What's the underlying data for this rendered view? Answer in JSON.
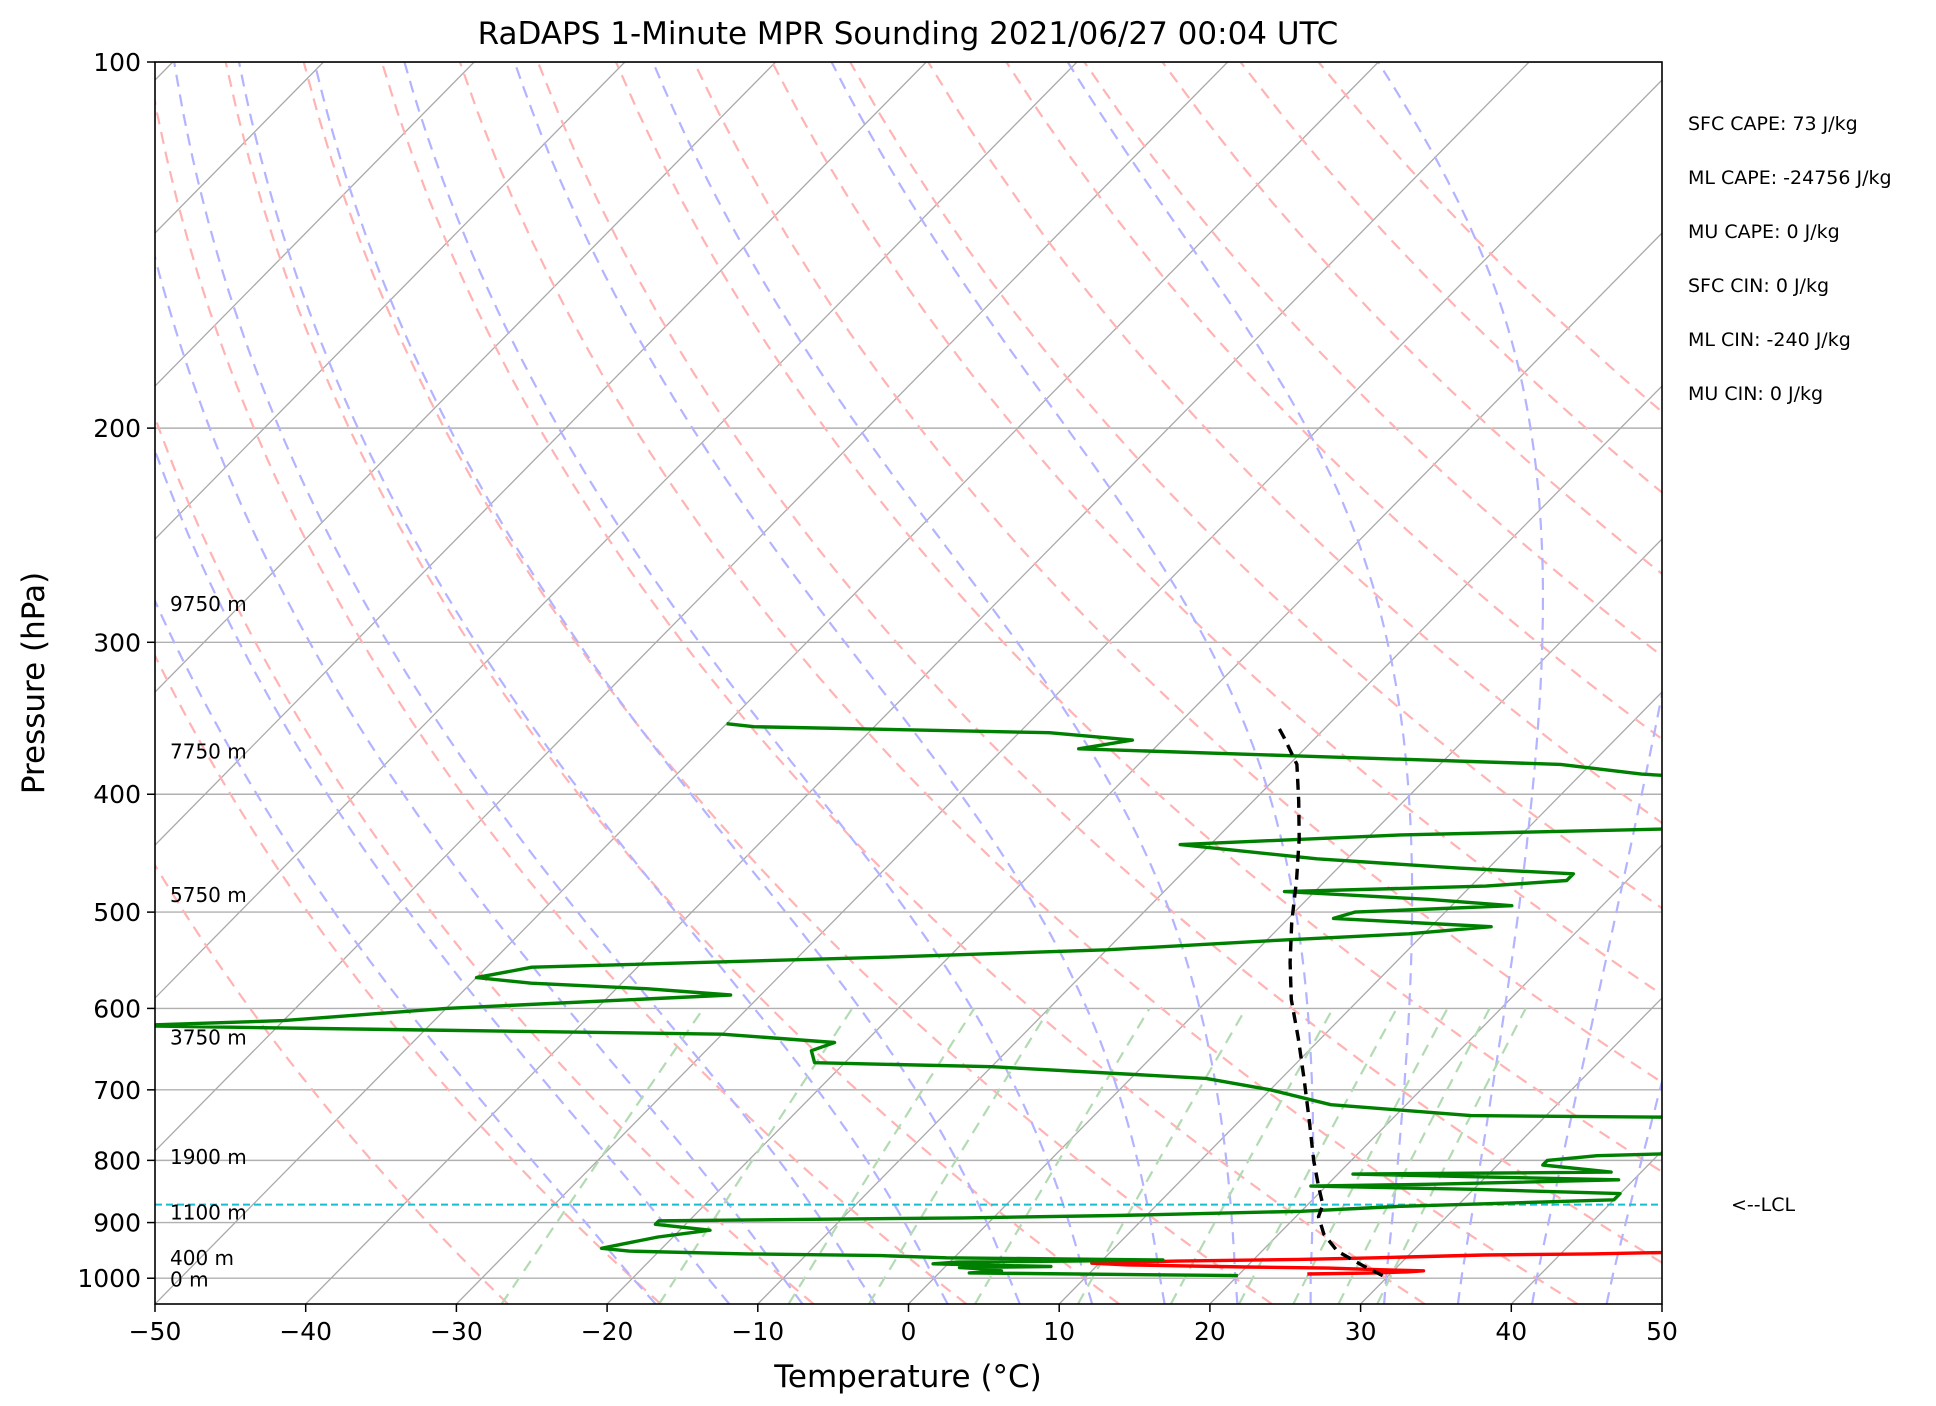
{
  "chart_data": {
    "type": "line",
    "title": "RaDAPS 1-Minute MPR Sounding 2021/06/27 00:04 UTC",
    "xlabel": "Temperature (°C)",
    "ylabel": "Pressure (hPa)",
    "xlim": [
      -50,
      50
    ],
    "ylim": [
      1050,
      100
    ],
    "y_scale": "log",
    "xticks": [
      -50,
      -40,
      -30,
      -20,
      -10,
      0,
      10,
      20,
      30,
      40,
      50
    ],
    "xtick_labels": [
      "−50",
      "−40",
      "−30",
      "−20",
      "−10",
      "0",
      "10",
      "20",
      "30",
      "40",
      "50"
    ],
    "yticks": [
      100,
      200,
      300,
      400,
      500,
      600,
      700,
      800,
      900,
      1000
    ],
    "ytick_labels": [
      "100",
      "200",
      "300",
      "400",
      "500",
      "600",
      "700",
      "800",
      "900",
      "1000"
    ],
    "grid": true,
    "skew": "skew-T (isotherms slanted)",
    "series": [
      {
        "color": "#ff0000",
        "points": [
          [
            24.5,
            992
          ],
          [
            29,
            990
          ],
          [
            31,
            988
          ],
          [
            32,
            986
          ],
          [
            29,
            984
          ],
          [
            25.5,
            981
          ],
          [
            20,
            979
          ],
          [
            12,
            975
          ],
          [
            9.5,
            972
          ],
          [
            15,
            968
          ],
          [
            23,
            965
          ],
          [
            28,
            962
          ],
          [
            35,
            957
          ],
          [
            42,
            955
          ],
          [
            47.8,
            952
          ],
          [
            50.8,
            955
          ]
        ]
      },
      {
        "color": "#008000",
        "points": [
          [
            20,
            995
          ],
          [
            2,
            990
          ],
          [
            4,
            986
          ],
          [
            3,
            983
          ],
          [
            1,
            980
          ],
          [
            7,
            978
          ],
          [
            2,
            975
          ],
          [
            -1,
            973
          ],
          [
            0.5,
            970
          ],
          [
            8,
            968
          ],
          [
            14,
            966
          ],
          [
            -0.5,
            962
          ],
          [
            -5,
            958
          ],
          [
            -14,
            955
          ],
          [
            -22,
            950
          ],
          [
            -24,
            945
          ],
          [
            -23,
            938
          ],
          [
            -21,
            925
          ],
          [
            -18,
            913
          ],
          [
            -22,
            903
          ],
          [
            -22,
            897
          ],
          [
            -2,
            892
          ],
          [
            8,
            888
          ],
          [
            20,
            881
          ],
          [
            26,
            873
          ],
          [
            40,
            862
          ],
          [
            40,
            852
          ],
          [
            30,
            845
          ],
          [
            19,
            840
          ],
          [
            27,
            837
          ],
          [
            39,
            830
          ],
          [
            31,
            826
          ],
          [
            21,
            821
          ],
          [
            38,
            818
          ],
          [
            33,
            807
          ],
          [
            33,
            800
          ],
          [
            36,
            793
          ],
          [
            47,
            786
          ],
          [
            50,
            778
          ],
          [
            51,
            771
          ],
          [
            56,
            765
          ],
          [
            63,
            760
          ],
          [
            70,
            753
          ],
          [
            85,
            745
          ],
          [
            25,
            735
          ],
          [
            15,
            720
          ],
          [
            10,
            700
          ],
          [
            5,
            685
          ],
          [
            -10,
            670
          ],
          [
            -22,
            665
          ],
          [
            -23,
            650
          ],
          [
            -22,
            640
          ],
          [
            -30,
            630
          ],
          [
            -50,
            625
          ],
          [
            -70,
            620
          ],
          [
            -60,
            614
          ],
          [
            -50,
            600
          ],
          [
            -32,
            585
          ],
          [
            -38,
            578
          ],
          [
            -46,
            572
          ],
          [
            -50,
            566
          ],
          [
            -47,
            555
          ],
          [
            -25,
            545
          ],
          [
            -10,
            537
          ],
          [
            0,
            528
          ],
          [
            9,
            521
          ],
          [
            14,
            514
          ],
          [
            3,
            506
          ],
          [
            4,
            500
          ],
          [
            14,
            494
          ],
          [
            8,
            488
          ],
          [
            -2,
            481
          ],
          [
            11,
            476
          ],
          [
            16,
            471
          ],
          [
            16,
            465
          ],
          [
            8,
            460
          ],
          [
            -2,
            452
          ],
          [
            -12,
            440
          ],
          [
            2,
            432
          ],
          [
            20,
            427
          ],
          [
            47,
            422
          ],
          [
            52,
            417
          ],
          [
            49,
            411
          ],
          [
            46,
            405
          ],
          [
            50,
            399
          ],
          [
            38,
            394
          ],
          [
            22,
            390
          ],
          [
            14,
            385
          ],
          [
            8,
            378
          ],
          [
            -10,
            372
          ],
          [
            -25,
            367
          ],
          [
            -22,
            361
          ],
          [
            -28,
            356
          ],
          [
            -48,
            352
          ],
          [
            -50,
            350
          ]
        ]
      },
      {
        "color": "#000000",
        "style": "dashed",
        "points": [
          [
            29.6,
            995
          ],
          [
            27.5,
            975
          ],
          [
            25,
            950
          ],
          [
            23,
            920
          ],
          [
            21.5,
            890
          ],
          [
            21,
            870
          ],
          [
            19.5,
            840
          ],
          [
            17.5,
            800
          ],
          [
            14.5,
            740
          ],
          [
            11.5,
            685
          ],
          [
            8.5,
            635
          ],
          [
            5.5,
            590
          ],
          [
            3,
            550
          ],
          [
            0.5,
            510
          ],
          [
            -2,
            470
          ],
          [
            -4.5,
            435
          ],
          [
            -7,
            405
          ],
          [
            -9.5,
            378
          ],
          [
            -12,
            360
          ],
          [
            -13.5,
            350
          ]
        ]
      }
    ],
    "lcl_pressure": 870,
    "lcl_label": "<--LCL",
    "height_labels": [
      {
        "text": "9750 m",
        "p": 279
      },
      {
        "text": "7750 m",
        "p": 369
      },
      {
        "text": "5750 m",
        "p": 484
      },
      {
        "text": "3750 m",
        "p": 634
      },
      {
        "text": "1900 m",
        "p": 795
      },
      {
        "text": "1100 m",
        "p": 883
      },
      {
        "text": "400 m",
        "p": 962
      },
      {
        "text": "0 m",
        "p": 1002
      }
    ],
    "stats": [
      "SFC CAPE: 73 J/kg",
      "ML CAPE: -24756 J/kg",
      "MU CAPE: 0 J/kg",
      "SFC CIN: 0 J/kg",
      "ML CIN: -240 J/kg",
      "MU CIN: 0 J/kg"
    ],
    "colors": {
      "isotherm": "#a9a9a9",
      "pressure_grid": "#b0b0b0",
      "dry_adiabat": "#ffb3b3",
      "moist_adiabat": "#b3b3ff",
      "mixing_ratio": "#b3dbb3",
      "lcl": "#17becf"
    }
  }
}
